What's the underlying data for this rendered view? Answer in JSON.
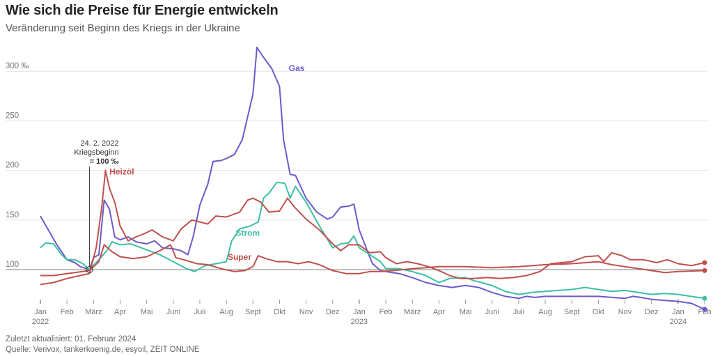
{
  "header": {
    "title": "Wie sich die Preise für Energie entwickeln",
    "subtitle": "Veränderung seit Beginn des Kriegs in der Ukraine"
  },
  "footer": {
    "updated": "Zuletzt aktualisiert: 01. Februar 2024",
    "source": "Quelle: Verivox, tankerkoenig.de, esyoil, ZEIT ONLINE"
  },
  "chart_data": {
    "type": "line",
    "title": "Wie sich die Preise für Energie entwickeln",
    "subtitle": "Veränderung seit Beginn des Kriegs in der Ukraine",
    "xlabel": "",
    "ylabel": "",
    "x_unit": "months since January 2022",
    "xlim": [
      0,
      25
    ],
    "ylim": [
      60,
      330
    ],
    "grid": true,
    "baseline": 100,
    "yticks": [
      {
        "value": 100,
        "label": "100"
      },
      {
        "value": 150,
        "label": "150"
      },
      {
        "value": 200,
        "label": "200"
      },
      {
        "value": 250,
        "label": "250"
      },
      {
        "value": 300,
        "label": "300 ‰"
      }
    ],
    "xticks": [
      {
        "value": 0,
        "label": "Jan",
        "sub": "2022"
      },
      {
        "value": 1,
        "label": "Feb"
      },
      {
        "value": 2,
        "label": "März"
      },
      {
        "value": 3,
        "label": "Apr"
      },
      {
        "value": 4,
        "label": "Mai"
      },
      {
        "value": 5,
        "label": "Juni"
      },
      {
        "value": 6,
        "label": "Juli"
      },
      {
        "value": 7,
        "label": "Aug"
      },
      {
        "value": 8,
        "label": "Sept"
      },
      {
        "value": 9,
        "label": "Okt"
      },
      {
        "value": 10,
        "label": "Nov"
      },
      {
        "value": 11,
        "label": "Dez"
      },
      {
        "value": 12,
        "label": "Jan",
        "sub": "2023"
      },
      {
        "value": 13,
        "label": "Feb"
      },
      {
        "value": 14,
        "label": "März"
      },
      {
        "value": 15,
        "label": "Apr"
      },
      {
        "value": 16,
        "label": "Mai"
      },
      {
        "value": 17,
        "label": "Juni"
      },
      {
        "value": 18,
        "label": "Juli"
      },
      {
        "value": 19,
        "label": "Aug"
      },
      {
        "value": 20,
        "label": "Sept"
      },
      {
        "value": 21,
        "label": "Okt"
      },
      {
        "value": 22,
        "label": "Nov"
      },
      {
        "value": 23,
        "label": "Dez"
      },
      {
        "value": 24,
        "label": "Jan",
        "sub": "2024"
      },
      {
        "value": 25,
        "label": "Feb"
      }
    ],
    "annotation": {
      "date": "24. 2. 2022",
      "label": "Kriegsbeginn",
      "value_text": "= 100 ‰",
      "x": 1.85,
      "y": 100
    },
    "series": [
      {
        "name": "Gas",
        "color": "#6a5acd",
        "label_at": [
          9.35,
          300
        ],
        "end_marker": true,
        "points": [
          [
            0,
            154
          ],
          [
            0.3,
            140
          ],
          [
            0.6,
            126
          ],
          [
            1.0,
            110
          ],
          [
            1.3,
            107
          ],
          [
            1.5,
            103
          ],
          [
            1.75,
            101
          ],
          [
            1.85,
            100
          ],
          [
            2.0,
            112
          ],
          [
            2.2,
            115
          ],
          [
            2.4,
            170
          ],
          [
            2.6,
            161
          ],
          [
            2.8,
            133
          ],
          [
            3.0,
            130
          ],
          [
            3.3,
            133
          ],
          [
            3.6,
            128
          ],
          [
            4.0,
            126
          ],
          [
            4.3,
            129
          ],
          [
            4.6,
            122
          ],
          [
            5.0,
            121
          ],
          [
            5.3,
            119
          ],
          [
            5.55,
            115
          ],
          [
            5.75,
            133
          ],
          [
            6.0,
            165
          ],
          [
            6.3,
            186
          ],
          [
            6.5,
            209
          ],
          [
            6.8,
            210
          ],
          [
            7.0,
            212
          ],
          [
            7.3,
            216
          ],
          [
            7.6,
            231
          ],
          [
            8.0,
            277
          ],
          [
            8.15,
            324
          ],
          [
            8.4,
            314
          ],
          [
            8.7,
            303
          ],
          [
            9.0,
            285
          ],
          [
            9.15,
            231
          ],
          [
            9.4,
            196
          ],
          [
            9.6,
            195
          ],
          [
            10.0,
            172
          ],
          [
            10.4,
            158
          ],
          [
            10.8,
            151
          ],
          [
            11.0,
            153
          ],
          [
            11.3,
            163
          ],
          [
            11.6,
            164
          ],
          [
            11.8,
            166
          ],
          [
            12.0,
            140
          ],
          [
            12.3,
            119
          ],
          [
            12.5,
            106
          ],
          [
            12.8,
            99
          ],
          [
            13.0,
            98
          ],
          [
            13.5,
            96
          ],
          [
            14.0,
            92
          ],
          [
            14.5,
            87
          ],
          [
            15.0,
            84
          ],
          [
            15.5,
            82
          ],
          [
            16.0,
            84
          ],
          [
            16.5,
            82
          ],
          [
            17.0,
            77
          ],
          [
            17.5,
            73
          ],
          [
            18.0,
            71
          ],
          [
            18.3,
            73
          ],
          [
            18.6,
            72
          ],
          [
            19.0,
            73
          ],
          [
            20.0,
            73
          ],
          [
            21.0,
            73
          ],
          [
            22.0,
            71
          ],
          [
            22.3,
            73
          ],
          [
            22.6,
            72
          ],
          [
            23.0,
            70
          ],
          [
            24.0,
            68
          ],
          [
            24.5,
            66
          ],
          [
            25.0,
            60
          ]
        ]
      },
      {
        "name": "Strom",
        "color": "#3dbfa3",
        "label_at": [
          7.35,
          134
        ],
        "end_marker": true,
        "points": [
          [
            0,
            122
          ],
          [
            0.2,
            127
          ],
          [
            0.5,
            126
          ],
          [
            0.8,
            115
          ],
          [
            1.0,
            110
          ],
          [
            1.3,
            110
          ],
          [
            1.6,
            106
          ],
          [
            1.85,
            100
          ],
          [
            2.2,
            110
          ],
          [
            2.5,
            119
          ],
          [
            2.7,
            128
          ],
          [
            3.0,
            125
          ],
          [
            3.4,
            126
          ],
          [
            4.0,
            120
          ],
          [
            4.5,
            115
          ],
          [
            5.0,
            108
          ],
          [
            5.5,
            101
          ],
          [
            5.8,
            98
          ],
          [
            6.2,
            104
          ],
          [
            6.6,
            106
          ],
          [
            7.0,
            108
          ],
          [
            7.2,
            129
          ],
          [
            7.5,
            141
          ],
          [
            7.9,
            144
          ],
          [
            8.2,
            148
          ],
          [
            8.4,
            172
          ],
          [
            8.6,
            177
          ],
          [
            8.9,
            188
          ],
          [
            9.2,
            187
          ],
          [
            9.4,
            172
          ],
          [
            9.6,
            184
          ],
          [
            10.0,
            168
          ],
          [
            10.5,
            144
          ],
          [
            11.0,
            122
          ],
          [
            11.3,
            126
          ],
          [
            11.6,
            127
          ],
          [
            11.8,
            134
          ],
          [
            12.0,
            122
          ],
          [
            12.4,
            115
          ],
          [
            12.8,
            108
          ],
          [
            13.0,
            101
          ],
          [
            13.5,
            101
          ],
          [
            14.0,
            98
          ],
          [
            14.5,
            94
          ],
          [
            15.0,
            87
          ],
          [
            15.4,
            91
          ],
          [
            16.0,
            92
          ],
          [
            16.3,
            89
          ],
          [
            16.6,
            87
          ],
          [
            17.0,
            84
          ],
          [
            17.5,
            78
          ],
          [
            18.0,
            75
          ],
          [
            18.5,
            77
          ],
          [
            19.0,
            78
          ],
          [
            20.0,
            80
          ],
          [
            20.5,
            82
          ],
          [
            21.0,
            80
          ],
          [
            21.5,
            78
          ],
          [
            22.0,
            79
          ],
          [
            22.5,
            77
          ],
          [
            23.0,
            75
          ],
          [
            23.5,
            76
          ],
          [
            24.0,
            75
          ],
          [
            25.0,
            71
          ]
        ]
      },
      {
        "name": "Heizöl",
        "color": "#c0504d",
        "label_at": [
          2.6,
          196
        ],
        "end_marker": true,
        "points": [
          [
            0,
            85
          ],
          [
            0.5,
            87
          ],
          [
            1.0,
            91
          ],
          [
            1.5,
            94
          ],
          [
            1.85,
            96
          ],
          [
            2.1,
            122
          ],
          [
            2.3,
            161
          ],
          [
            2.45,
            200
          ],
          [
            2.6,
            182
          ],
          [
            2.8,
            168
          ],
          [
            3.0,
            144
          ],
          [
            3.3,
            129
          ],
          [
            3.6,
            133
          ],
          [
            3.9,
            136
          ],
          [
            4.2,
            140
          ],
          [
            4.6,
            133
          ],
          [
            5.0,
            129
          ],
          [
            5.3,
            141
          ],
          [
            5.7,
            150
          ],
          [
            6.0,
            148
          ],
          [
            6.3,
            146
          ],
          [
            6.6,
            154
          ],
          [
            7.0,
            153
          ],
          [
            7.5,
            158
          ],
          [
            7.8,
            170
          ],
          [
            8.0,
            172
          ],
          [
            8.3,
            168
          ],
          [
            8.6,
            158
          ],
          [
            9.0,
            159
          ],
          [
            9.3,
            172
          ],
          [
            9.6,
            162
          ],
          [
            10.0,
            151
          ],
          [
            10.5,
            140
          ],
          [
            11.0,
            126
          ],
          [
            11.3,
            119
          ],
          [
            11.6,
            125
          ],
          [
            12.0,
            125
          ],
          [
            12.4,
            117
          ],
          [
            12.8,
            118
          ],
          [
            13.0,
            112
          ],
          [
            13.4,
            106
          ],
          [
            13.8,
            108
          ],
          [
            14.2,
            106
          ],
          [
            14.6,
            103
          ],
          [
            15.0,
            99
          ],
          [
            15.4,
            94
          ],
          [
            15.8,
            91
          ],
          [
            16.3,
            91
          ],
          [
            16.8,
            92
          ],
          [
            17.3,
            91
          ],
          [
            17.8,
            92
          ],
          [
            18.3,
            94
          ],
          [
            18.8,
            98
          ],
          [
            19.2,
            106
          ],
          [
            19.6,
            107
          ],
          [
            20.0,
            108
          ],
          [
            20.5,
            113
          ],
          [
            21.0,
            114
          ],
          [
            21.2,
            108
          ],
          [
            21.5,
            117
          ],
          [
            21.9,
            114
          ],
          [
            22.2,
            110
          ],
          [
            22.7,
            110
          ],
          [
            23.2,
            107
          ],
          [
            23.6,
            110
          ],
          [
            24.0,
            106
          ],
          [
            24.5,
            104
          ],
          [
            25.0,
            107
          ]
        ]
      },
      {
        "name": "Super",
        "color": "#c0504d",
        "label_at": [
          7.05,
          110
        ],
        "end_marker": true,
        "points": [
          [
            0,
            94
          ],
          [
            0.5,
            94
          ],
          [
            1.0,
            96
          ],
          [
            1.85,
            99
          ],
          [
            2.2,
            108
          ],
          [
            2.4,
            125
          ],
          [
            2.7,
            118
          ],
          [
            3.0,
            113
          ],
          [
            3.5,
            111
          ],
          [
            4.0,
            113
          ],
          [
            4.5,
            119
          ],
          [
            4.9,
            125
          ],
          [
            5.1,
            112
          ],
          [
            5.4,
            110
          ],
          [
            5.9,
            106
          ],
          [
            6.3,
            105
          ],
          [
            6.8,
            101
          ],
          [
            7.3,
            98
          ],
          [
            7.7,
            99
          ],
          [
            8.0,
            103
          ],
          [
            8.2,
            114
          ],
          [
            8.5,
            111
          ],
          [
            8.9,
            108
          ],
          [
            9.3,
            108
          ],
          [
            9.7,
            106
          ],
          [
            10.1,
            108
          ],
          [
            10.5,
            105
          ],
          [
            11.0,
            99
          ],
          [
            11.5,
            96
          ],
          [
            12.0,
            96
          ],
          [
            12.4,
            98
          ],
          [
            12.8,
            98
          ],
          [
            13.3,
            99
          ],
          [
            14.0,
            101
          ],
          [
            14.5,
            102
          ],
          [
            15.0,
            103
          ],
          [
            15.5,
            103
          ],
          [
            16.0,
            103
          ],
          [
            17.0,
            102
          ],
          [
            18.0,
            103
          ],
          [
            19.0,
            105
          ],
          [
            20.0,
            106
          ],
          [
            21.0,
            108
          ],
          [
            21.5,
            105
          ],
          [
            22.0,
            103
          ],
          [
            23.0,
            99
          ],
          [
            23.5,
            97
          ],
          [
            24.0,
            98
          ],
          [
            25.0,
            99
          ]
        ]
      }
    ]
  }
}
